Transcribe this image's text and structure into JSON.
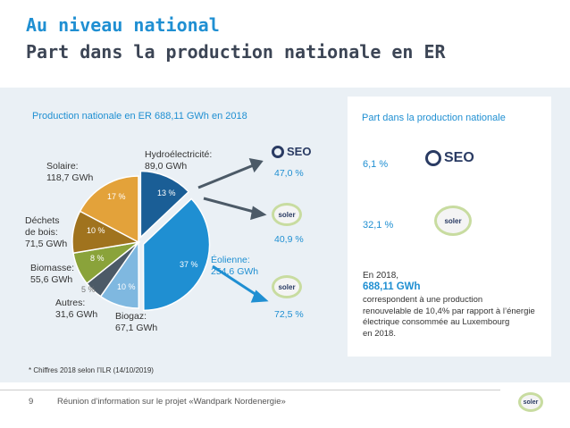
{
  "header": {
    "title_line1": "Au niveau national",
    "title_line2": "Part dans la production nationale en ER"
  },
  "chart_title": "Production nationale en ER 688,11 GWh en 2018",
  "chart_data": {
    "type": "pie",
    "title": "Production nationale en ER 688,11 GWh en 2018",
    "slices": [
      {
        "name": "Hydroélectricité",
        "value": 89.0,
        "unit": "GWh",
        "percent": 13,
        "percent_label": "13 %",
        "color": "#1a5e96"
      },
      {
        "name": "Éolienne",
        "value": 254.6,
        "unit": "GWh",
        "percent": 37,
        "percent_label": "37 %",
        "color": "#1f8fd2"
      },
      {
        "name": "Biogaz",
        "value": 67.1,
        "unit": "GWh",
        "percent": 10,
        "percent_label": "10 %",
        "color": "#7fb8e0"
      },
      {
        "name": "Autres",
        "value": 31.6,
        "unit": "GWh",
        "percent": 5,
        "percent_label": "5 %",
        "color": "#4c5a67"
      },
      {
        "name": "Biomasse",
        "value": 55.6,
        "unit": "GWh",
        "percent": 8,
        "percent_label": "8 %",
        "color": "#8aa33a"
      },
      {
        "name": "Déchets de bois",
        "value": 71.5,
        "unit": "GWh",
        "percent": 10,
        "percent_label": "10 %",
        "color": "#a0731e"
      },
      {
        "name": "Solaire",
        "value": 118.7,
        "unit": "GWh",
        "percent": 17,
        "percent_label": "17 %",
        "color": "#e3a23a"
      }
    ]
  },
  "labels": {
    "hydro": [
      "Hydroélectricité:",
      "89,0 GWh"
    ],
    "solaire": [
      "Solaire:",
      "118,7 GWh"
    ],
    "dechets": [
      "Déchets",
      "de bois:",
      "71,5 GWh"
    ],
    "biomasse": [
      "Biomasse:",
      "55,6 GWh"
    ],
    "autres": [
      "Autres:",
      "31,6 GWh"
    ],
    "biogaz": [
      "Biogaz:",
      "67,1 GWh"
    ],
    "eolienne": [
      "Éolienne:",
      "254,6 GWh"
    ]
  },
  "arrow_pcts": {
    "seo": "47,0 %",
    "soler1": "40,9 %",
    "soler2": "72,5 %"
  },
  "logos": {
    "seo": "SEO",
    "soler": "soler"
  },
  "panel": {
    "title": "Part dans la production nationale",
    "seo_pct": "6,1 %",
    "soler_pct": "32,1 %",
    "text_line1": "En 2018,",
    "text_value": "688,11 GWh",
    "text_body": [
      "correspondent à une production",
      "renouvelable de 10,4% par rapport à l’énergie",
      "électrique consommée au Luxembourg",
      "en 2018."
    ]
  },
  "footnote": "* Chiffres 2018 selon l’ILR (14/10/2019)",
  "footer": {
    "page": "9",
    "text": "Réunion d’information sur le projet «Wandpark Nordenergie»"
  },
  "colors": {
    "accent": "#1f8fd2",
    "title": "#3c4555",
    "band": "#eaf0f5"
  }
}
